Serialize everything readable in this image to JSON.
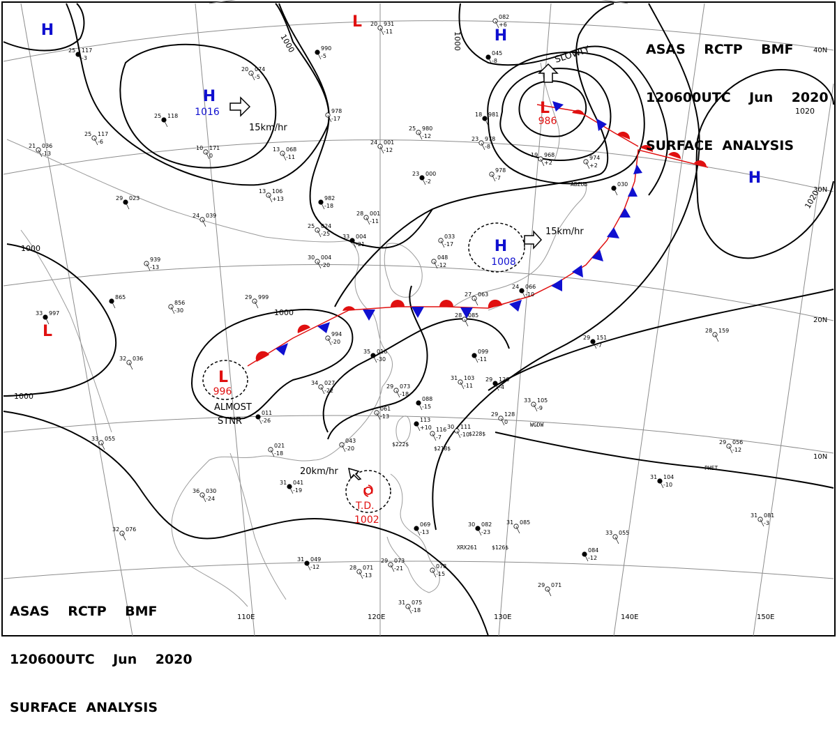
{
  "header": {
    "line1": "ASAS    RCTP    BMF",
    "line2": "120600UTC    Jun    2020",
    "line3": "SURFACE  ANALYSIS"
  },
  "colors": {
    "isobar": "#000000",
    "high": "#1010d0",
    "low": "#e01010",
    "coast": "#9a9a9a",
    "grid": "#888888"
  },
  "pressure_centers": [
    {
      "type": "H",
      "value": "",
      "name": "high-nw-corner"
    },
    {
      "type": "H",
      "value": "1016",
      "name": "high-mongolia"
    },
    {
      "type": "L",
      "value": "",
      "name": "low-north-top"
    },
    {
      "type": "H",
      "value": "",
      "name": "high-north-top"
    },
    {
      "type": "L",
      "value": "986",
      "name": "low-okhotsk"
    },
    {
      "type": "H",
      "value": "",
      "name": "high-pacific"
    },
    {
      "type": "H",
      "value": "1008",
      "name": "high-japan-sea"
    },
    {
      "type": "L",
      "value": "",
      "name": "low-india"
    },
    {
      "type": "L",
      "value": "996",
      "name": "low-south-china"
    }
  ],
  "isobar_labels": [
    "1000",
    "1000",
    "1000",
    "1000",
    "1020",
    "1020",
    "1000"
  ],
  "annotations": {
    "move_mongolia": "15km/hr",
    "move_okhotsk": "SLOWLY",
    "move_japan": "15km/hr",
    "move_td": "20km/hr",
    "almost": "ALMOST",
    "stnr": "STNR",
    "td_label": "T.D.",
    "td_pressure": "1002"
  },
  "latitude_labels": [
    "40N",
    "30N",
    "20N",
    "10N"
  ],
  "longitude_labels": [
    "110E",
    "120E",
    "130E",
    "140E",
    "150E"
  ],
  "stations": [
    {
      "t": "25",
      "p": "117",
      "d": "-3"
    },
    {
      "t": "21",
      "p": "036",
      "d": "-13"
    },
    {
      "t": "25",
      "p": "117",
      "d": "-6"
    },
    {
      "t": "25",
      "p": "118",
      "d": ""
    },
    {
      "t": "10",
      "p": "171",
      "d": "0"
    },
    {
      "t": "20",
      "p": "074",
      "d": "-5"
    },
    {
      "t": "",
      "p": "990",
      "d": "-5"
    },
    {
      "t": "",
      "p": "978",
      "d": "-17"
    },
    {
      "t": "13",
      "p": "068",
      "d": "-11"
    },
    {
      "t": "29",
      "p": "023",
      "d": ""
    },
    {
      "t": "24",
      "p": "039",
      "d": ""
    },
    {
      "t": "13",
      "p": "106",
      "d": "+13"
    },
    {
      "t": "",
      "p": "982",
      "d": "-18"
    },
    {
      "t": "24",
      "p": "001",
      "d": "-12"
    },
    {
      "t": "25",
      "p": "980",
      "d": "-12"
    },
    {
      "t": "23",
      "p": "000",
      "d": "-2"
    },
    {
      "t": "28",
      "p": "001",
      "d": "-11"
    },
    {
      "t": "25",
      "p": "024",
      "d": "-25"
    },
    {
      "t": "33",
      "p": "004",
      "d": "-21"
    },
    {
      "t": "",
      "p": "939",
      "d": "-13"
    },
    {
      "t": "30",
      "p": "004",
      "d": "-20"
    },
    {
      "t": "",
      "p": "865",
      "d": ""
    },
    {
      "t": "",
      "p": "856",
      "d": "-30"
    },
    {
      "t": "29",
      "p": "999",
      "d": ""
    },
    {
      "t": "33",
      "p": "997",
      "d": ""
    },
    {
      "t": "32",
      "p": "036",
      "d": ""
    },
    {
      "t": "",
      "p": "994",
      "d": "-20"
    },
    {
      "t": "35",
      "p": "016",
      "d": "-30"
    },
    {
      "t": "34",
      "p": "027",
      "d": "-22"
    },
    {
      "t": "29",
      "p": "073",
      "d": "-18"
    },
    {
      "t": "",
      "p": "088",
      "d": "-15"
    },
    {
      "t": "",
      "p": "061",
      "d": "-13"
    },
    {
      "t": "",
      "p": "043",
      "d": "-20"
    },
    {
      "t": "",
      "p": "011",
      "d": "-26"
    },
    {
      "t": "",
      "p": "021",
      "d": "-18"
    },
    {
      "t": "33",
      "p": "055",
      "d": ""
    },
    {
      "t": "31",
      "p": "041",
      "d": "-19"
    },
    {
      "t": "36",
      "p": "030",
      "d": "-24"
    },
    {
      "t": "32",
      "p": "076",
      "d": ""
    },
    {
      "t": "31",
      "p": "049",
      "d": "-12"
    },
    {
      "t": "28",
      "p": "071",
      "d": "-13"
    },
    {
      "t": "29",
      "p": "073",
      "d": "-21"
    },
    {
      "t": "",
      "p": "069",
      "d": "-13"
    },
    {
      "t": "",
      "p": "078",
      "d": "-15"
    },
    {
      "t": "31",
      "p": "075",
      "d": "-18"
    },
    {
      "t": "30",
      "p": "082",
      "d": "-23"
    },
    {
      "t": "31",
      "p": "085",
      "d": ""
    },
    {
      "t": "30",
      "p": "111",
      "d": "-10"
    },
    {
      "t": "",
      "p": "113",
      "d": "+10"
    },
    {
      "t": "",
      "p": "116",
      "d": "-7"
    },
    {
      "t": "31",
      "p": "103",
      "d": "-11"
    },
    {
      "t": "29",
      "p": "126",
      "d": "-4"
    },
    {
      "t": "29",
      "p": "128",
      "d": "0"
    },
    {
      "t": "33",
      "p": "105",
      "d": "-9"
    },
    {
      "t": "",
      "p": "099",
      "d": "-11"
    },
    {
      "t": "28",
      "p": "085",
      "d": ""
    },
    {
      "t": "27",
      "p": "063",
      "d": ""
    },
    {
      "t": "24",
      "p": "066",
      "d": "-10"
    },
    {
      "t": "",
      "p": "048",
      "d": "-12"
    },
    {
      "t": "",
      "p": "033",
      "d": "-17"
    },
    {
      "t": "",
      "p": "030",
      "d": ""
    },
    {
      "t": "",
      "p": "978",
      "d": "-7"
    },
    {
      "t": "23",
      "p": "978",
      "d": "-8"
    },
    {
      "t": "18",
      "p": "981",
      "d": ""
    },
    {
      "t": "19",
      "p": "968",
      "d": "+2"
    },
    {
      "t": "",
      "p": "974",
      "d": "+2"
    },
    {
      "t": "",
      "p": "045",
      "d": "-8"
    },
    {
      "t": "",
      "p": "082",
      "d": "+6"
    },
    {
      "t": "20",
      "p": "931",
      "d": "-11"
    },
    {
      "t": "29",
      "p": "151",
      "d": "-7"
    },
    {
      "t": "28",
      "p": "159",
      "d": ""
    },
    {
      "t": "29",
      "p": "056",
      "d": "-12"
    },
    {
      "t": "31",
      "p": "104",
      "d": "-10"
    },
    {
      "t": "31",
      "p": "081",
      "d": "-3"
    },
    {
      "t": "33",
      "p": "055",
      "d": ""
    },
    {
      "t": "",
      "p": "084",
      "d": "-12"
    },
    {
      "t": "29",
      "p": "071",
      "d": ""
    }
  ],
  "ship_ids": [
    "ABZUB",
    "WGDW",
    "PHET",
    "XRX261",
    "$126$",
    "$228$",
    "$222$",
    "$218$"
  ]
}
